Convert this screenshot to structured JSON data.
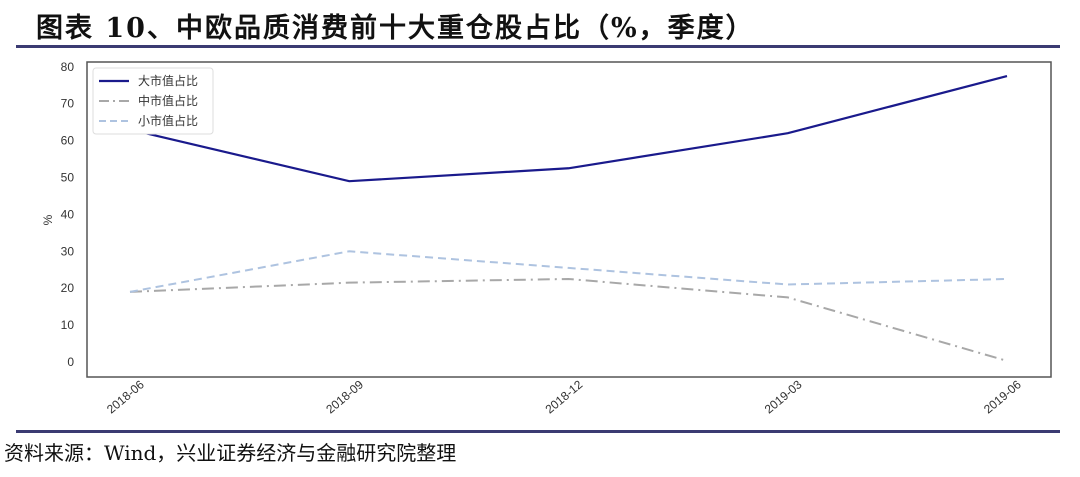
{
  "title": "图表 10、中欧品质消费前十大重仓股占比（%，季度）",
  "source": "资料来源：Wind，兴业证券经济与金融研究院整理",
  "colors": {
    "large": "#1a1a8c",
    "mid": "#a8a8a8",
    "small": "#aec3e0",
    "rule": "#3b3b72"
  },
  "legend": {
    "items": [
      {
        "label": "大市值占比",
        "style": "solid"
      },
      {
        "label": "中市值占比",
        "style": "dashdot"
      },
      {
        "label": "小市值占比",
        "style": "dashed"
      }
    ]
  },
  "chart_data": {
    "type": "line",
    "title": "图表 10、中欧品质消费前十大重仓股占比（%，季度）",
    "xlabel": "",
    "ylabel": "%",
    "categories": [
      "2018-06",
      "2018-09",
      "2018-12",
      "2019-03",
      "2019-06"
    ],
    "series": [
      {
        "name": "大市值占比",
        "values": [
          63.0,
          49.0,
          52.5,
          62.0,
          77.5
        ]
      },
      {
        "name": "中市值占比",
        "values": [
          19.0,
          21.5,
          22.5,
          17.5,
          0.3
        ]
      },
      {
        "name": "小市值占比",
        "values": [
          19.0,
          30.0,
          25.5,
          21.0,
          22.5
        ]
      }
    ],
    "yticks": [
      0,
      10,
      20,
      30,
      40,
      50,
      60,
      70,
      80
    ],
    "ylim": [
      -4,
      81
    ],
    "grid": false,
    "legend_position": "upper left"
  }
}
